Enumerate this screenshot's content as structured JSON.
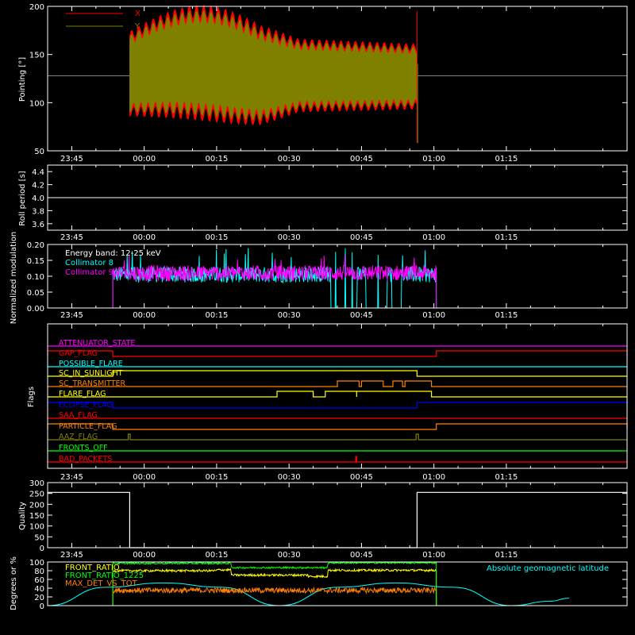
{
  "x_ticks": [
    "23:45",
    "00:00",
    "00:15",
    "00:30",
    "00:45",
    "01:00",
    "01:15"
  ],
  "colors": {
    "x": "#ff0000",
    "y": "#808000",
    "cyan": "#00ffff",
    "magenta": "#ff00ff",
    "yellow": "#ffff00",
    "orange": "#ff8000",
    "green": "#00ff00",
    "blue": "#0000ff",
    "red": "#ff2020",
    "white": "#ffffff"
  },
  "chart_data": [
    {
      "type": "line",
      "ylabel": "Pointing [°]",
      "ylim": [
        50,
        200
      ],
      "yticks": [
        "50",
        "100",
        "150",
        "200"
      ],
      "xlim_min": [
        -20,
        100
      ],
      "time_range_min": [
        -3,
        56.5
      ],
      "hline": 128,
      "series": [
        {
          "name": "X",
          "color": "#ff0000",
          "envelope": "wide"
        },
        {
          "name": "Y",
          "color": "#808000",
          "envelope": "narrow"
        }
      ]
    },
    {
      "type": "line",
      "ylabel": "Roll period [s]",
      "ylim": [
        3.5,
        4.5
      ],
      "yticks": [
        "3.6",
        "3.8",
        "4.0",
        "4.2",
        "4.4"
      ],
      "value": 4.0
    },
    {
      "type": "line",
      "ylabel": "Normalized modulation",
      "ylim": [
        0,
        0.2
      ],
      "yticks": [
        "0.00",
        "0.05",
        "0.10",
        "0.15",
        "0.20"
      ],
      "annotation": "Energy band: 12-25 keV",
      "time_range_min": [
        -6.5,
        60.5
      ],
      "series": [
        {
          "name": "Collimator 8",
          "color": "#00ffff",
          "mean": 0.105
        },
        {
          "name": "Collimator 9",
          "color": "#ff00ff",
          "mean": 0.11
        }
      ],
      "dropouts_min": [
        [
          38.3,
          44.4
        ],
        [
          45.6,
          50.6
        ],
        [
          51.3,
          53.3
        ]
      ]
    },
    {
      "type": "line",
      "ylabel": "Flags",
      "series": [
        {
          "name": "ATTENUATOR_STATE",
          "color": "#ff00ff",
          "on": []
        },
        {
          "name": "GAP_FLAG",
          "color": "#ff0000",
          "on": [
            [
              -20,
              -6.5
            ],
            [
              60.5,
              100
            ]
          ]
        },
        {
          "name": "POSSIBLE_FLARE",
          "color": "#00ffff",
          "on": []
        },
        {
          "name": "SC_IN_SUNLIGHT",
          "color": "#ffff00",
          "on": [
            [
              -6.5,
              56.5
            ]
          ]
        },
        {
          "name": "SC_TRANSMITTER",
          "color": "#ff8000",
          "on": [
            [
              40,
              44.5
            ],
            [
              45,
              49.5
            ],
            [
              51.5,
              53.5
            ],
            [
              54,
              59.5
            ]
          ]
        },
        {
          "name": "FLARE_FLAG",
          "color": "#ffff00",
          "on": [
            [
              27.5,
              35
            ],
            [
              37.5,
              44
            ],
            [
              44,
              59.5
            ]
          ]
        },
        {
          "name": "ECLIPSE_FLAG",
          "color": "#0000ff",
          "on": [
            [
              -20,
              -6.5
            ],
            [
              56.5,
              100
            ]
          ]
        },
        {
          "name": "SAA_FLAG",
          "color": "#ff0000",
          "on": []
        },
        {
          "name": "PARTICLE_FLAG",
          "color": "#ff8000",
          "on": [
            [
              -20,
              -6.5
            ],
            [
              60.5,
              100
            ]
          ]
        },
        {
          "name": "AAZ_FLAG",
          "color": "#808000",
          "on": [
            [
              -3.3,
              -2.9
            ],
            [
              56.3,
              56.8
            ]
          ]
        },
        {
          "name": "FRONTS_OFF",
          "color": "#00ff00",
          "on": []
        },
        {
          "name": "BAD_PACKETS",
          "color": "#ff0000",
          "on": [
            [
              43.8,
              44.0
            ]
          ]
        }
      ]
    },
    {
      "type": "line",
      "ylabel": "Quality",
      "ylim": [
        0,
        300
      ],
      "yticks": [
        "0",
        "50",
        "100",
        "150",
        "200",
        "250",
        "300"
      ],
      "points": [
        [
          -20,
          255
        ],
        [
          -3,
          255
        ],
        [
          -3,
          0
        ],
        [
          56.5,
          0
        ],
        [
          56.5,
          255
        ],
        [
          100,
          255
        ]
      ]
    },
    {
      "type": "line",
      "ylabel": "Degrees or %",
      "ylim": [
        0,
        100
      ],
      "yticks": [
        "0",
        "20",
        "40",
        "60",
        "80",
        "100"
      ],
      "time_range_min": [
        -6.5,
        60.5
      ],
      "series": [
        {
          "name": "FRONT_RATIO",
          "color": "#ffff00",
          "levels": [
            [
              -6.5,
              80
            ],
            [
              15,
              82
            ],
            [
              18,
              70
            ],
            [
              34,
              67
            ],
            [
              38,
              81
            ],
            [
              60.5,
              81
            ]
          ]
        },
        {
          "name": "FRONT_RATIO_1225",
          "color": "#00ff00",
          "levels": [
            [
              -6.5,
              97
            ],
            [
              15,
              97
            ],
            [
              18,
              87
            ],
            [
              38,
              98
            ],
            [
              60.5,
              98
            ]
          ]
        },
        {
          "name": "MAX_DET_VS_TOT",
          "color": "#ff8000",
          "level": 35
        },
        {
          "name": "Absolute geomagnetic latitude",
          "color": "#00ffff",
          "points": [
            [
              -20,
              0
            ],
            [
              -8,
              42
            ],
            [
              4,
              52
            ],
            [
              16,
              42
            ],
            [
              28,
              0
            ],
            [
              40,
              42
            ],
            [
              52,
              52
            ],
            [
              64,
              42
            ],
            [
              76,
              0
            ],
            [
              84,
              10
            ],
            [
              88,
              17
            ]
          ]
        }
      ]
    }
  ]
}
